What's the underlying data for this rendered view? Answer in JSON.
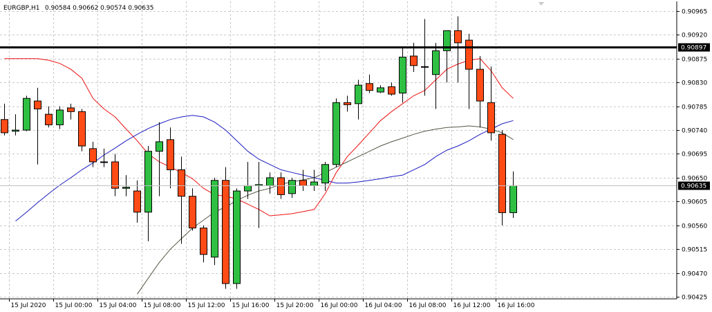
{
  "chart_data": {
    "type": "candlestick",
    "symbol": "EURGBP,H1",
    "ohlc_label": "0.90584 0.90662 0.90574 0.90635",
    "y_range": [
      0.90425,
      0.90965
    ],
    "y_ticks": [
      "0.90965",
      "0.90920",
      "0.90875",
      "0.90830",
      "0.90785",
      "0.90740",
      "0.90695",
      "0.90650",
      "0.90605",
      "0.90560",
      "0.90515",
      "0.90470",
      "0.90425"
    ],
    "x_ticks": [
      {
        "label": "15 Jul 2020",
        "slot": 0.4
      },
      {
        "label": "15 Jul 00:00",
        "slot": 4.4
      },
      {
        "label": "15 Jul 04:00",
        "slot": 8.4
      },
      {
        "label": "15 Jul 08:00",
        "slot": 12.4
      },
      {
        "label": "15 Jul 12:00",
        "slot": 16.4
      },
      {
        "label": "15 Jul 16:00",
        "slot": 20.4
      },
      {
        "label": "15 Jul 20:00",
        "slot": 24.4
      },
      {
        "label": "16 Jul 00:00",
        "slot": 28.4
      },
      {
        "label": "16 Jul 04:00",
        "slot": 32.4
      },
      {
        "label": "16 Jul 08:00",
        "slot": 36.4
      },
      {
        "label": "16 Jul 12:00",
        "slot": 40.4
      },
      {
        "label": "16 Jul 16:00",
        "slot": 44.4
      }
    ],
    "candles": [
      {
        "o": 0.9076,
        "h": 0.9079,
        "l": 0.9073,
        "c": 0.90735
      },
      {
        "o": 0.90738,
        "h": 0.9077,
        "l": 0.9073,
        "c": 0.9074
      },
      {
        "o": 0.9074,
        "h": 0.90805,
        "l": 0.90738,
        "c": 0.908
      },
      {
        "o": 0.90795,
        "h": 0.9082,
        "l": 0.90675,
        "c": 0.9078
      },
      {
        "o": 0.9077,
        "h": 0.90785,
        "l": 0.90745,
        "c": 0.9075
      },
      {
        "o": 0.9075,
        "h": 0.90785,
        "l": 0.90742,
        "c": 0.90778
      },
      {
        "o": 0.90782,
        "h": 0.9079,
        "l": 0.9076,
        "c": 0.90775
      },
      {
        "o": 0.90775,
        "h": 0.9078,
        "l": 0.907,
        "c": 0.9071
      },
      {
        "o": 0.90705,
        "h": 0.90718,
        "l": 0.9067,
        "c": 0.9068
      },
      {
        "o": 0.9068,
        "h": 0.90705,
        "l": 0.9067,
        "c": 0.9068
      },
      {
        "o": 0.9068,
        "h": 0.90695,
        "l": 0.90615,
        "c": 0.9063
      },
      {
        "o": 0.9063,
        "h": 0.90655,
        "l": 0.90615,
        "c": 0.90632
      },
      {
        "o": 0.90625,
        "h": 0.90645,
        "l": 0.90565,
        "c": 0.90585
      },
      {
        "o": 0.90585,
        "h": 0.9071,
        "l": 0.9053,
        "c": 0.907
      },
      {
        "o": 0.907,
        "h": 0.90755,
        "l": 0.90615,
        "c": 0.90718
      },
      {
        "o": 0.90722,
        "h": 0.90745,
        "l": 0.9063,
        "c": 0.90665
      },
      {
        "o": 0.90665,
        "h": 0.9069,
        "l": 0.90525,
        "c": 0.90615
      },
      {
        "o": 0.90615,
        "h": 0.9063,
        "l": 0.9055,
        "c": 0.90555
      },
      {
        "o": 0.90555,
        "h": 0.9056,
        "l": 0.9049,
        "c": 0.90505
      },
      {
        "o": 0.905,
        "h": 0.9065,
        "l": 0.90485,
        "c": 0.90645
      },
      {
        "o": 0.90645,
        "h": 0.9067,
        "l": 0.9044,
        "c": 0.9045
      },
      {
        "o": 0.9045,
        "h": 0.9063,
        "l": 0.9044,
        "c": 0.90625
      },
      {
        "o": 0.90625,
        "h": 0.9068,
        "l": 0.9061,
        "c": 0.90635
      },
      {
        "o": 0.90635,
        "h": 0.9068,
        "l": 0.90555,
        "c": 0.90637
      },
      {
        "o": 0.90635,
        "h": 0.9066,
        "l": 0.9062,
        "c": 0.9065
      },
      {
        "o": 0.9065,
        "h": 0.9066,
        "l": 0.9061,
        "c": 0.90618
      },
      {
        "o": 0.9062,
        "h": 0.9065,
        "l": 0.90612,
        "c": 0.90645
      },
      {
        "o": 0.90645,
        "h": 0.90665,
        "l": 0.90625,
        "c": 0.90635
      },
      {
        "o": 0.90635,
        "h": 0.90665,
        "l": 0.90625,
        "c": 0.90642
      },
      {
        "o": 0.9064,
        "h": 0.9068,
        "l": 0.90625,
        "c": 0.90675
      },
      {
        "o": 0.90675,
        "h": 0.908,
        "l": 0.9067,
        "c": 0.90792
      },
      {
        "o": 0.90792,
        "h": 0.90805,
        "l": 0.90775,
        "c": 0.90788
      },
      {
        "o": 0.9079,
        "h": 0.90835,
        "l": 0.9076,
        "c": 0.90825
      },
      {
        "o": 0.90828,
        "h": 0.90845,
        "l": 0.9081,
        "c": 0.90815
      },
      {
        "o": 0.90812,
        "h": 0.90825,
        "l": 0.9081,
        "c": 0.9082
      },
      {
        "o": 0.90822,
        "h": 0.9083,
        "l": 0.90805,
        "c": 0.90808
      },
      {
        "o": 0.9081,
        "h": 0.90895,
        "l": 0.90792,
        "c": 0.90878
      },
      {
        "o": 0.9088,
        "h": 0.90905,
        "l": 0.9085,
        "c": 0.90862
      },
      {
        "o": 0.9086,
        "h": 0.9095,
        "l": 0.90805,
        "c": 0.9086
      },
      {
        "o": 0.90845,
        "h": 0.90905,
        "l": 0.9078,
        "c": 0.9089
      },
      {
        "o": 0.9089,
        "h": 0.90928,
        "l": 0.9083,
        "c": 0.90928
      },
      {
        "o": 0.90928,
        "h": 0.90955,
        "l": 0.9083,
        "c": 0.90905
      },
      {
        "o": 0.9091,
        "h": 0.90922,
        "l": 0.9078,
        "c": 0.90855
      },
      {
        "o": 0.90855,
        "h": 0.9088,
        "l": 0.90745,
        "c": 0.90795
      },
      {
        "o": 0.90792,
        "h": 0.9086,
        "l": 0.9072,
        "c": 0.90735
      },
      {
        "o": 0.90732,
        "h": 0.9074,
        "l": 0.9056,
        "c": 0.90584
      },
      {
        "o": 0.90584,
        "h": 0.90662,
        "l": 0.90574,
        "c": 0.90635
      }
    ],
    "moving_averages": [
      {
        "color": "#ee1111",
        "values": [
          0.90875,
          0.90875,
          0.90875,
          0.90875,
          0.90872,
          0.90866,
          0.90855,
          0.90838,
          0.908,
          0.9078,
          0.90765,
          0.90742,
          0.9072,
          0.90695,
          0.9068,
          0.9067,
          0.9066,
          0.90648,
          0.9063,
          0.90618,
          0.90615,
          0.9061,
          0.906,
          0.9059,
          0.90578,
          0.9058,
          0.90582,
          0.90586,
          0.9059,
          0.9062,
          0.9066,
          0.9069,
          0.90712,
          0.90735,
          0.90758,
          0.90775,
          0.9079,
          0.90805,
          0.90815,
          0.90835,
          0.90855,
          0.90865,
          0.90872,
          0.90875,
          0.90852,
          0.9082,
          0.908
        ]
      },
      {
        "color": "#1a1ac0",
        "values": [
          null,
          0.90568,
          0.90585,
          0.90603,
          0.9062,
          0.90636,
          0.9065,
          0.90665,
          0.90678,
          0.90693,
          0.90706,
          0.9072,
          0.90732,
          0.90743,
          0.90752,
          0.9076,
          0.90765,
          0.90768,
          0.90765,
          0.90755,
          0.9074,
          0.9072,
          0.907,
          0.90685,
          0.90675,
          0.90665,
          0.9066,
          0.90655,
          0.9065,
          0.90645,
          0.9064,
          0.9064,
          0.90642,
          0.90645,
          0.90648,
          0.90652,
          0.90655,
          0.90665,
          0.90675,
          0.9069,
          0.90702,
          0.9071,
          0.9072,
          0.90732,
          0.90742,
          0.90752,
          0.90758
        ]
      },
      {
        "color": "#555544",
        "values": [
          null,
          null,
          null,
          null,
          null,
          null,
          null,
          null,
          null,
          null,
          null,
          null,
          0.9043,
          0.9046,
          0.9049,
          0.90515,
          0.90535,
          0.90555,
          0.9057,
          0.90585,
          0.90595,
          0.90607,
          0.90617,
          0.90625,
          0.9063,
          0.90638,
          0.90642,
          0.90646,
          0.9065,
          0.9066,
          0.9067,
          0.9068,
          0.9069,
          0.907,
          0.9071,
          0.90718,
          0.90725,
          0.90732,
          0.90738,
          0.90742,
          0.90745,
          0.90746,
          0.90748,
          0.90746,
          0.90742,
          0.90735,
          0.90722
        ]
      }
    ],
    "hlines": [
      {
        "value": 0.90897,
        "label": "0.90897",
        "style": "thick"
      },
      {
        "value": 0.90635,
        "label": "0.90635",
        "style": "thin"
      }
    ],
    "bull_color": "#2fc043",
    "bear_color": "#ff4b16",
    "grid": true
  }
}
